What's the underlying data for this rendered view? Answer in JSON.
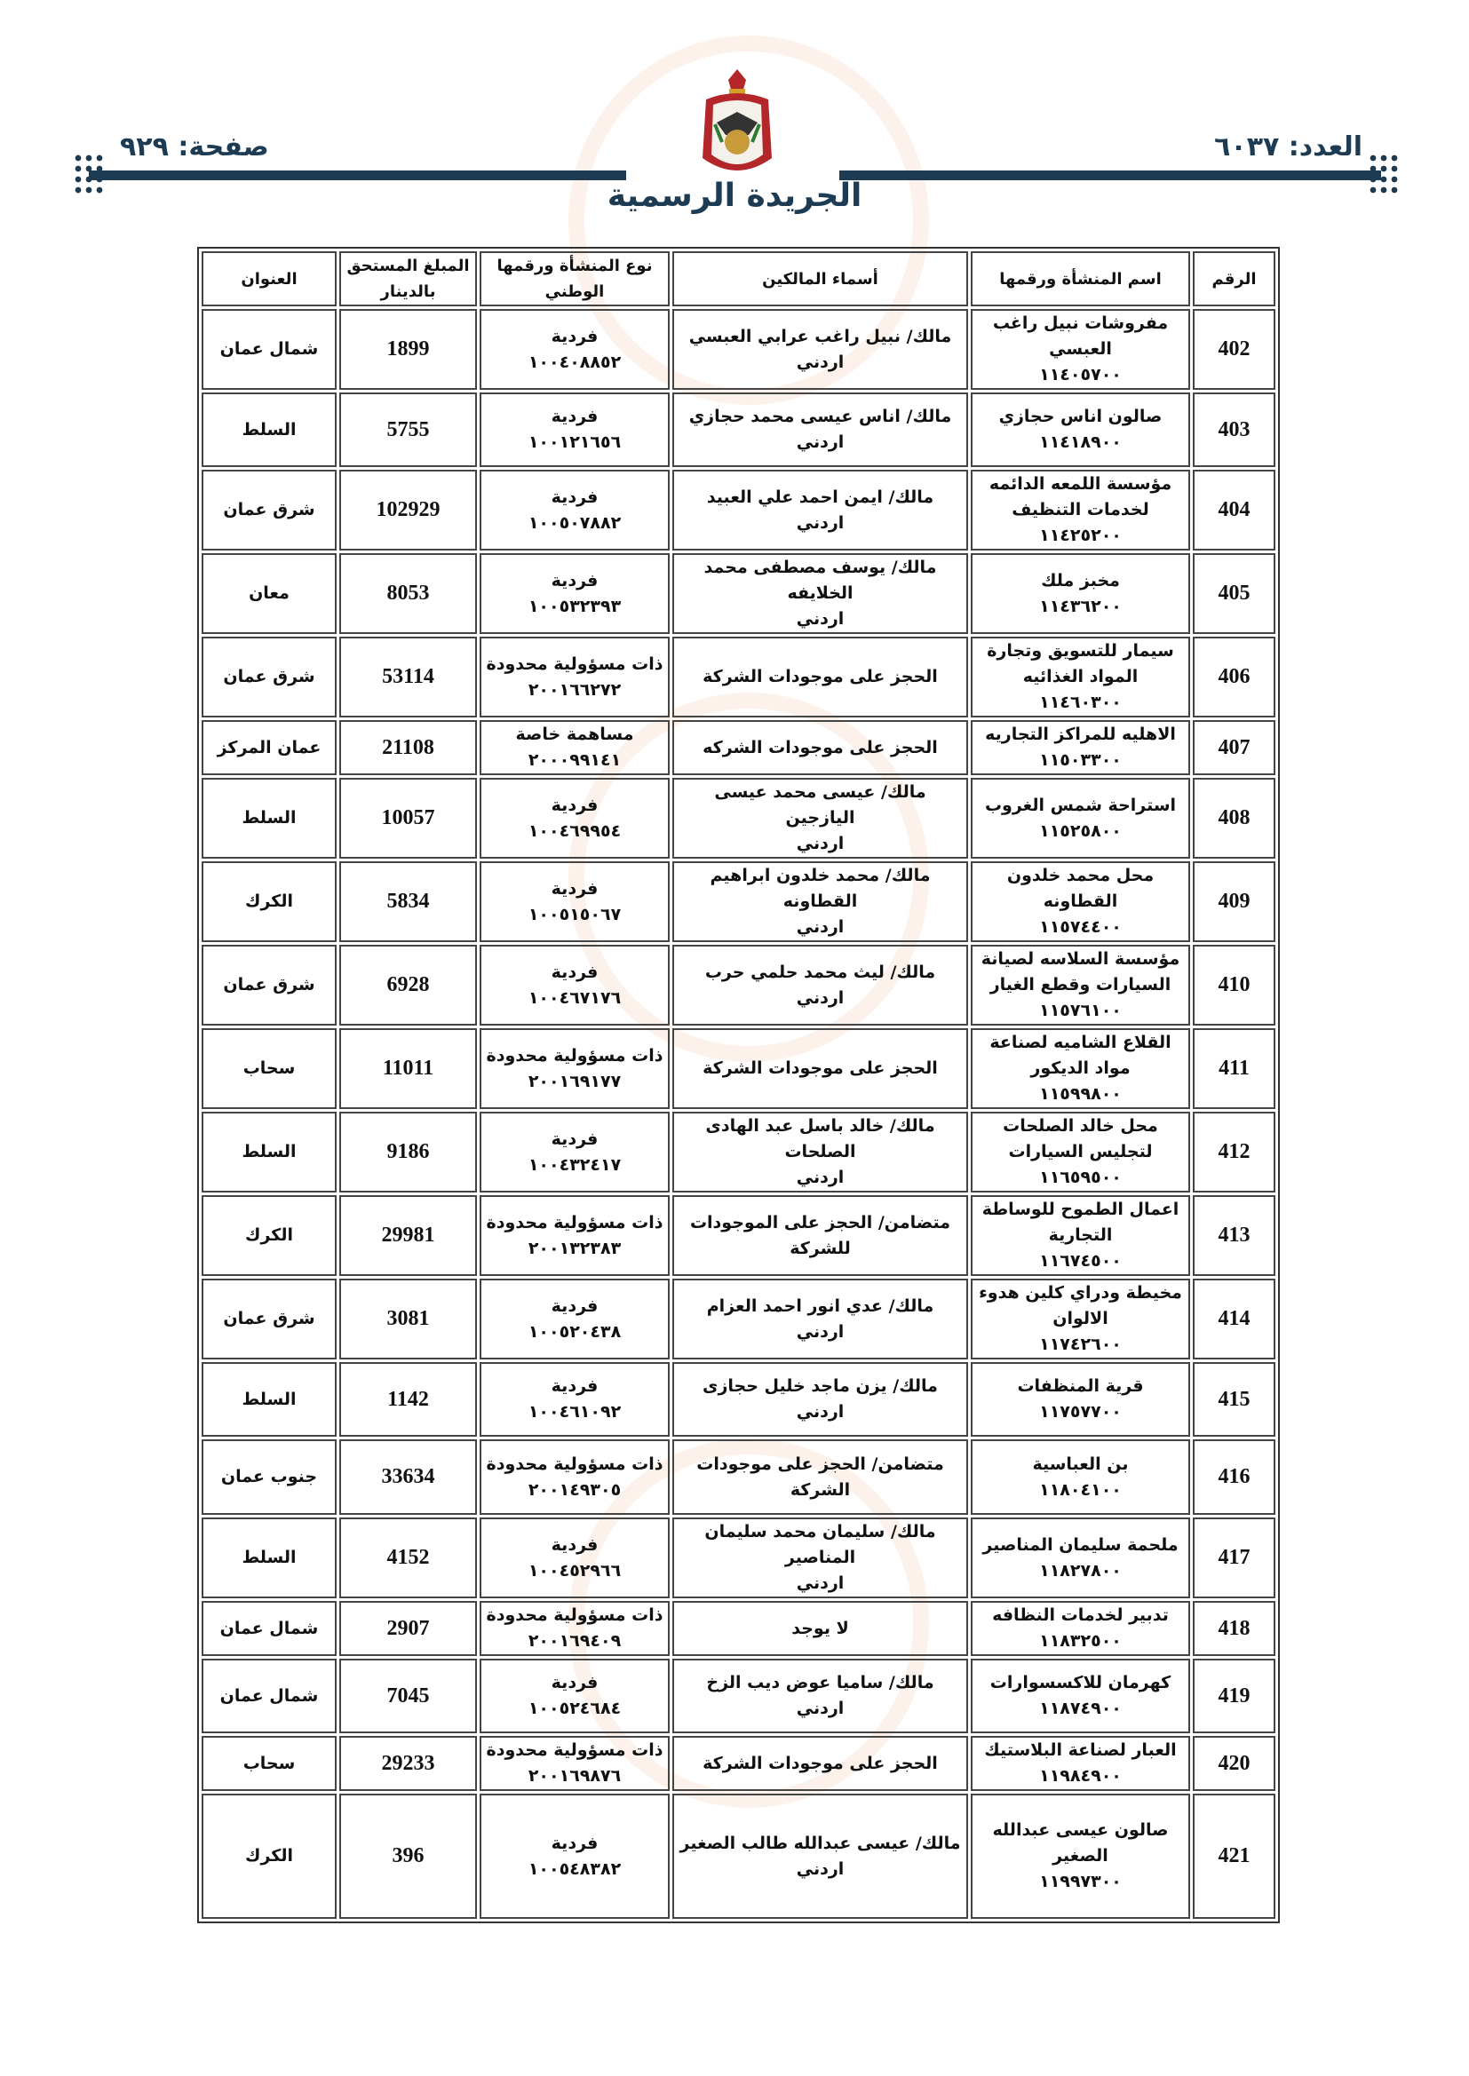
{
  "header": {
    "issue": "العدد: ٦٠٣٧",
    "page": "صفحة: ٩٢٩",
    "title": "الجريدة الرسمية"
  },
  "columns": [
    "الرقم",
    "اسم المنشأة ورقمها",
    "أسماء المالكين",
    "نوع المنشأة ورقمها الوطني",
    "المبلغ المستحق بالدينار",
    "العنوان"
  ],
  "rows": [
    {
      "no": "402",
      "name": "مفروشات نبيل راغب\nالعبسي\n١١٤٠٥٧٠٠",
      "owners": "مالك/ نبيل راغب عرابي العبسي\nاردني",
      "type": "فردية\n١٠٠٤٠٨٨٥٢",
      "amount": "1899",
      "address": "شمال عمان"
    },
    {
      "no": "403",
      "name": "صالون اناس حجازي\n١١٤١٨٩٠٠",
      "owners": "مالك/ اناس عيسى محمد حجازي\nاردني",
      "type": "فردية\n١٠٠١٢١٦٥٦",
      "amount": "5755",
      "address": "السلط"
    },
    {
      "no": "404",
      "name": "مؤسسة اللمعه الدائمه\nلخدمات التنظيف\n١١٤٢٥٢٠٠",
      "owners": "مالك/ ايمن احمد علي العبيد\nاردني",
      "type": "فردية\n١٠٠٥٠٧٨٨٢",
      "amount": "102929",
      "address": "شرق عمان"
    },
    {
      "no": "405",
      "name": "مخبز ملك\n١١٤٣٦٢٠٠",
      "owners": "مالك/ يوسف مصطفى محمد الخلايفه\nاردني",
      "type": "فردية\n١٠٠٥٣٢٣٩٣",
      "amount": "8053",
      "address": "معان"
    },
    {
      "no": "406",
      "name": "سيمار للتسويق وتجارة\nالمواد الغذائيه\n١١٤٦٠٣٠٠",
      "owners": "الحجز على موجودات الشركة",
      "type": "ذات مسؤولية محدودة\n٢٠٠١٦٦٢٧٢",
      "amount": "53114",
      "address": "شرق عمان"
    },
    {
      "no": "407",
      "name": "الاهليه للمراكز التجاريه\n١١٥٠٣٣٠٠",
      "owners": "الحجز على موجودات الشركه",
      "type": "مساهمة خاصة\n٢٠٠٠٩٩١٤١",
      "amount": "21108",
      "address": "عمان المركز"
    },
    {
      "no": "408",
      "name": "استراحة شمس الغروب\n١١٥٢٥٨٠٠",
      "owners": "مالك/ عيسى محمد عيسى اليازجين\nاردني",
      "type": "فردية\n١٠٠٤٦٩٩٥٤",
      "amount": "10057",
      "address": "السلط"
    },
    {
      "no": "409",
      "name": "محل محمد خلدون القطاونه\n١١٥٧٤٤٠٠",
      "owners": "مالك/ محمد خلدون ابراهيم القطاونه\nاردني",
      "type": "فردية\n١٠٠٥١٥٠٦٧",
      "amount": "5834",
      "address": "الكرك"
    },
    {
      "no": "410",
      "name": "مؤسسة السلاسه لصيانة\nالسيارات وقطع الغيار\n١١٥٧٦١٠٠",
      "owners": "مالك/ ليث محمد حلمي حرب\nاردني",
      "type": "فردية\n١٠٠٤٦٧١٧٦",
      "amount": "6928",
      "address": "شرق عمان"
    },
    {
      "no": "411",
      "name": "القلاع الشاميه لصناعة\nمواد الديكور\n١١٥٩٩٨٠٠",
      "owners": "الحجز على موجودات الشركة",
      "type": "ذات مسؤولية محدودة\n٢٠٠١٦٩١٧٧",
      "amount": "11011",
      "address": "سحاب"
    },
    {
      "no": "412",
      "name": "محل خالد الصلحات\nلتجليس السيارات\n١١٦٥٩٥٠٠",
      "owners": "مالك/ خالد باسل عبد الهادى الصلحات\nاردني",
      "type": "فردية\n١٠٠٤٣٢٤١٧",
      "amount": "9186",
      "address": "السلط"
    },
    {
      "no": "413",
      "name": "اعمال الطموح للوساطة\nالتجارية\n١١٦٧٤٥٠٠",
      "owners": "متضامن/ الحجز على الموجودات\nللشركة",
      "type": "ذات مسؤولية محدودة\n٢٠٠١٣٢٣٨٣",
      "amount": "29981",
      "address": "الكرك"
    },
    {
      "no": "414",
      "name": "مخيطة ودراي كلين هدوء\nالالوان\n١١٧٤٢٦٠٠",
      "owners": "مالك/ عدي انور احمد العزام\nاردني",
      "type": "فردية\n١٠٠٥٢٠٤٣٨",
      "amount": "3081",
      "address": "شرق عمان"
    },
    {
      "no": "415",
      "name": "قرية المنظفات\n١١٧٥٧٧٠٠",
      "owners": "مالك/ يزن ماجد خليل حجازى\nاردني",
      "type": "فردية\n١٠٠٤٦١٠٩٢",
      "amount": "1142",
      "address": "السلط"
    },
    {
      "no": "416",
      "name": "بن العباسية\n١١٨٠٤١٠٠",
      "owners": "متضامن/ الحجز على موجودات\nالشركة",
      "type": "ذات مسؤولية محدودة\n٢٠٠١٤٩٣٠٥",
      "amount": "33634",
      "address": "جنوب عمان"
    },
    {
      "no": "417",
      "name": "ملحمة سليمان المناصير\n١١٨٢٧٨٠٠",
      "owners": "مالك/ سليمان محمد سليمان المناصير\nاردني",
      "type": "فردية\n١٠٠٤٥٢٩٦٦",
      "amount": "4152",
      "address": "السلط"
    },
    {
      "no": "418",
      "name": "تدبير لخدمات النظافه\n١١٨٣٢٥٠٠",
      "owners": "لا يوجد",
      "type": "ذات مسؤولية محدودة\n٢٠٠١٦٩٤٠٩",
      "amount": "2907",
      "address": "شمال عمان"
    },
    {
      "no": "419",
      "name": "كهرمان للاكسسوارات\n١١٨٧٤٩٠٠",
      "owners": "مالك/ ساميا عوض ديب الزخ\nاردني",
      "type": "فردية\n١٠٠٥٢٤٦٨٤",
      "amount": "7045",
      "address": "شمال عمان"
    },
    {
      "no": "420",
      "name": "العبار لصناعة البلاستيك\n١١٩٨٤٩٠٠",
      "owners": "الحجز على موجودات الشركة",
      "type": "ذات مسؤولية محدودة\n٢٠٠١٦٩٨٧٦",
      "amount": "29233",
      "address": "سحاب"
    },
    {
      "no": "421",
      "name": "صالون عيسى عبدالله\nالصغير\n١١٩٩٧٣٠٠",
      "owners": "مالك/ عيسى عبدالله طالب الصغير\nاردني",
      "type": "فردية\n١٠٠٥٤٨٣٨٢",
      "amount": "396",
      "address": "الكرك"
    }
  ]
}
